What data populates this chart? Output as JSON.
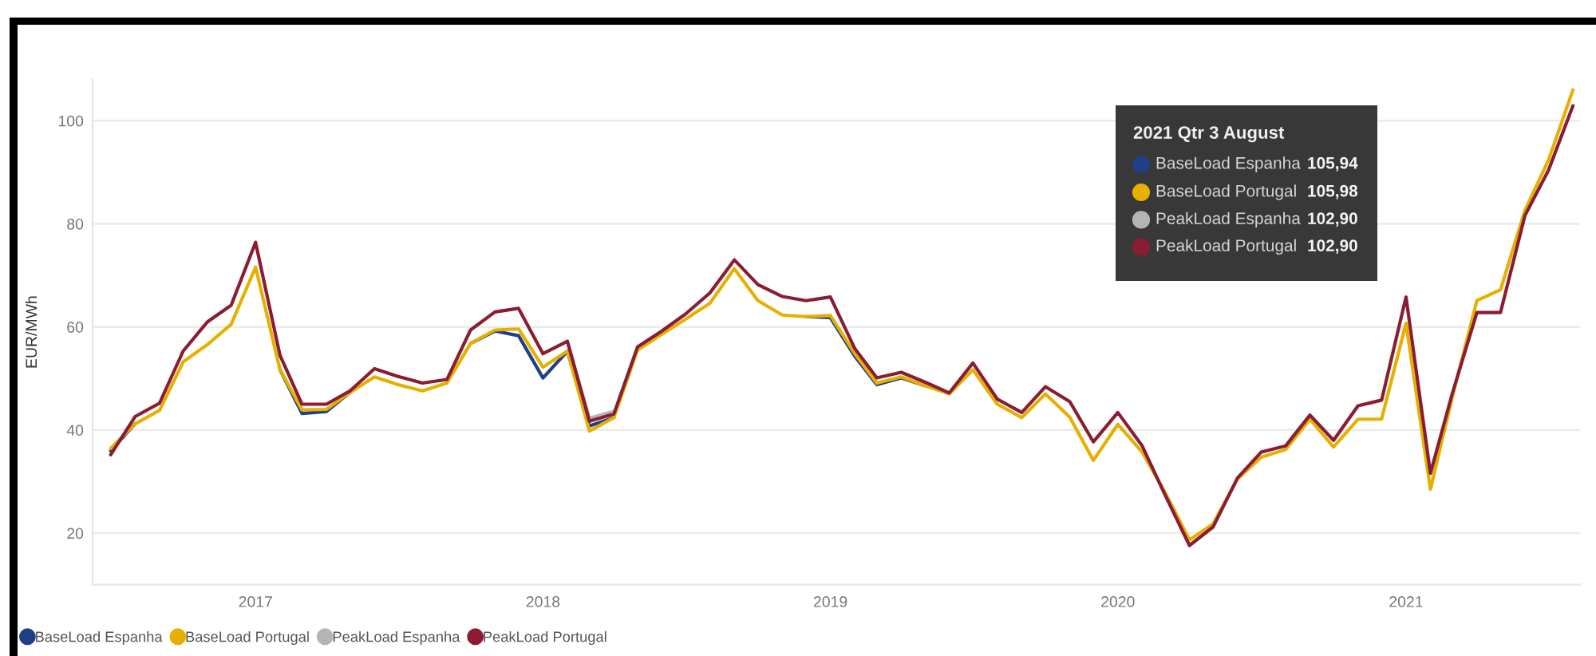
{
  "chart_data": {
    "type": "line",
    "ylabel": "EUR/MWh",
    "x": [
      "2016-07",
      "2016-08",
      "2016-09",
      "2016-10",
      "2016-11",
      "2016-12",
      "2017-01",
      "2017-02",
      "2017-03",
      "2017-04",
      "2017-05",
      "2017-06",
      "2017-07",
      "2017-08",
      "2017-09",
      "2017-10",
      "2017-11",
      "2017-12",
      "2018-01",
      "2018-02",
      "2018-03",
      "2018-04",
      "2018-05",
      "2018-06",
      "2018-07",
      "2018-08",
      "2018-09",
      "2018-10",
      "2018-11",
      "2018-12",
      "2019-01",
      "2019-02",
      "2019-03",
      "2019-04",
      "2019-05",
      "2019-06",
      "2019-07",
      "2019-08",
      "2019-09",
      "2019-10",
      "2019-11",
      "2019-12",
      "2020-01",
      "2020-02",
      "2020-03",
      "2020-04",
      "2020-05",
      "2020-06",
      "2020-07",
      "2020-08",
      "2020-09",
      "2020-10",
      "2020-11",
      "2020-12",
      "2021-01",
      "2021-02",
      "2021-03",
      "2021-04",
      "2021-05",
      "2021-06",
      "2021-07",
      "2021-08"
    ],
    "series": [
      {
        "name": "BaseLoad Espanha",
        "color": "#1f3f86",
        "values": [
          36.0,
          41.2,
          null,
          null,
          null,
          null,
          null,
          51.7,
          43.2,
          43.6,
          47.3,
          null,
          null,
          null,
          null,
          56.8,
          59.2,
          58.3,
          50.1,
          55.3,
          40.8,
          42.4,
          null,
          null,
          null,
          null,
          null,
          null,
          null,
          62.0,
          61.8,
          54.3,
          48.8,
          50.1,
          48.6,
          null,
          null,
          null,
          null,
          null,
          null,
          null,
          null,
          null,
          null,
          null,
          null,
          null,
          null,
          null,
          null,
          null,
          null,
          null,
          null,
          null,
          null,
          null,
          null,
          null,
          null,
          null
        ]
      },
      {
        "name": "BaseLoad Portugal",
        "color": "#e6b000",
        "values": [
          36.4,
          41.2,
          43.8,
          53.2,
          56.6,
          60.5,
          71.6,
          51.7,
          43.9,
          44.0,
          47.3,
          50.3,
          48.8,
          47.6,
          49.1,
          56.8,
          59.4,
          59.6,
          52.2,
          55.3,
          39.8,
          42.4,
          55.5,
          58.6,
          61.5,
          64.6,
          71.3,
          65.1,
          62.3,
          62.0,
          62.2,
          54.8,
          49.1,
          50.3,
          48.6,
          47.0,
          51.7,
          45.0,
          42.4,
          47.0,
          42.5,
          34.1,
          41.1,
          35.7,
          27.9,
          18.7,
          21.8,
          30.5,
          34.7,
          36.2,
          42.1,
          36.7,
          42.1,
          42.1,
          60.7,
          28.5,
          46.5,
          65.1,
          67.2,
          82.6,
          92.4,
          105.98
        ]
      },
      {
        "name": "PeakLoad Espanha",
        "color": "#b4b4b4",
        "values": [
          null,
          null,
          null,
          null,
          null,
          null,
          null,
          null,
          null,
          null,
          null,
          null,
          null,
          null,
          null,
          null,
          null,
          null,
          null,
          57.2,
          42.3,
          43.6,
          null,
          null,
          null,
          null,
          null,
          null,
          null,
          null,
          null,
          null,
          null,
          null,
          null,
          null,
          null,
          null,
          null,
          null,
          null,
          null,
          null,
          null,
          null,
          null,
          null,
          null,
          null,
          null,
          null,
          null,
          null,
          null,
          null,
          null,
          null,
          null,
          null,
          null,
          null,
          null
        ]
      },
      {
        "name": "PeakLoad Portugal",
        "color": "#8a1c33",
        "values": [
          35.2,
          42.6,
          45.2,
          55.3,
          61.0,
          64.2,
          76.4,
          54.5,
          45.0,
          45.0,
          47.6,
          51.9,
          50.4,
          49.1,
          49.8,
          59.4,
          62.9,
          63.6,
          54.8,
          57.2,
          41.7,
          43.1,
          56.1,
          59.2,
          62.5,
          66.6,
          73.0,
          68.2,
          65.9,
          65.1,
          65.8,
          55.8,
          50.1,
          51.2,
          49.3,
          47.2,
          53.0,
          46.0,
          43.4,
          48.4,
          45.5,
          37.7,
          43.4,
          36.9,
          27.4,
          17.6,
          21.2,
          30.7,
          35.7,
          36.9,
          42.9,
          38.0,
          44.7,
          45.8,
          65.8,
          31.6,
          47.2,
          62.8,
          62.8,
          81.6,
          90.4,
          102.9
        ]
      }
    ],
    "xlim": [
      "2016-06-08",
      "2021-08-10"
    ],
    "xticks": [
      "2017",
      "2018",
      "2019",
      "2020",
      "2021"
    ],
    "ylim": [
      10,
      108
    ],
    "yticks": [
      20,
      40,
      60,
      80,
      100
    ],
    "grid": "y",
    "legend": "bottom left",
    "marker": "none",
    "line_style": "solid",
    "annotations": [
      "2021 Qtr 3 August",
      "105,94",
      "105,98",
      "102,90",
      "102,90"
    ]
  }
}
